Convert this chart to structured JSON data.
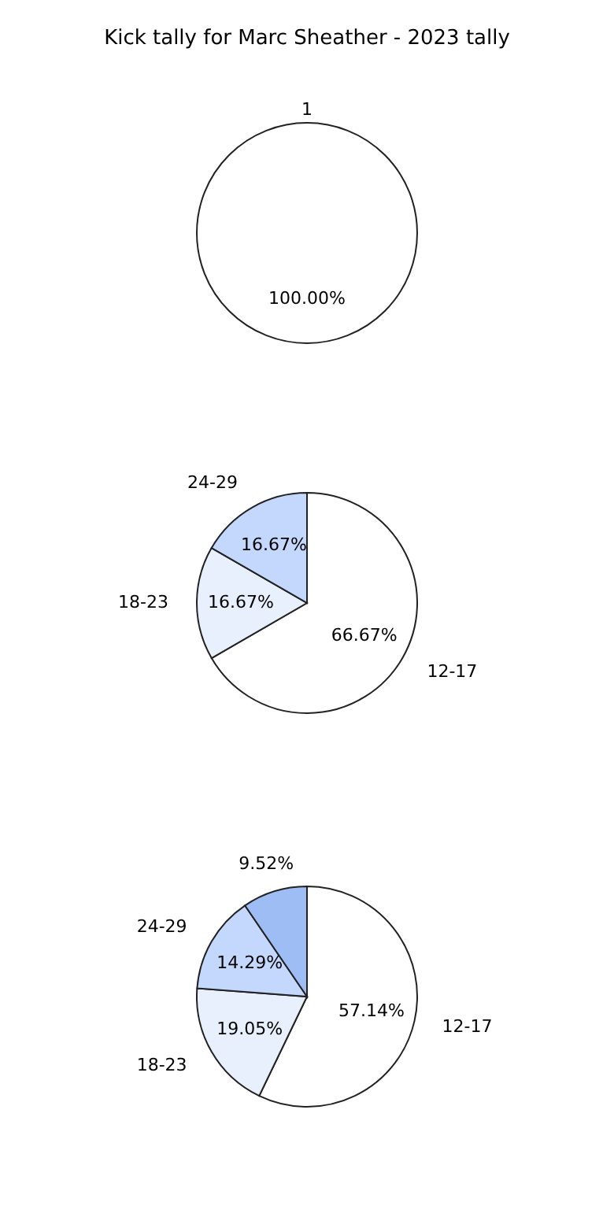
{
  "chart_data": [
    {
      "type": "pie",
      "title": "Kick tally for Marc Sheather - 2023 tally",
      "categories": [
        "1"
      ],
      "values": [
        100
      ],
      "colors": [
        "#ffffff"
      ],
      "value_labels": [
        "100.00%"
      ]
    },
    {
      "type": "pie",
      "categories": [
        "12-17",
        "18-23",
        "24-29"
      ],
      "values": [
        66.67,
        16.67,
        16.67
      ],
      "colors": [
        "#ffffff",
        "#e8f0fe",
        "#c4d8fd"
      ],
      "value_labels": [
        "66.67%",
        "16.67%",
        "16.67%"
      ]
    },
    {
      "type": "pie",
      "categories": [
        "12-17",
        "18-23",
        "24-29",
        null
      ],
      "values": [
        57.14,
        19.05,
        14.29,
        9.52
      ],
      "colors": [
        "#ffffff",
        "#e8f0fe",
        "#c4d8fd",
        "#9fbdf5"
      ],
      "value_labels": [
        "57.14%",
        "19.05%",
        "14.29%",
        "9.52%"
      ]
    }
  ]
}
